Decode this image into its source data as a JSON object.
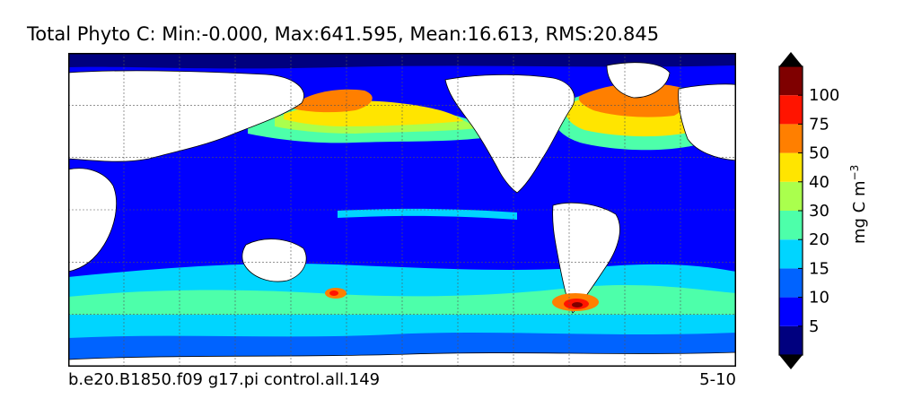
{
  "chart_data": {
    "type": "heatmap",
    "title": "Total Phyto C: Min:-0.000, Max:641.595, Mean:16.613, RMS:20.845",
    "subtitle_left": "b.e20.B1850.f09 g17.pi control.all.149",
    "subtitle_right": "5-10",
    "projection": "global lat-lon map (contour fill)",
    "grid": true,
    "colorbar": {
      "orientation": "vertical",
      "placement": "right",
      "extend": "both",
      "unit_label": "mg C m",
      "unit_superscript": "−3",
      "levels": [
        5,
        10,
        15,
        20,
        30,
        40,
        50,
        75,
        100
      ],
      "tick_labels": [
        "5",
        "10",
        "15",
        "20",
        "30",
        "40",
        "50",
        "75",
        "100"
      ],
      "colors": [
        "#00007f",
        "#0000ff",
        "#0063ff",
        "#00d5ff",
        "#4dffaa",
        "#aaff4d",
        "#ffe500",
        "#ff7f00",
        "#ff1400",
        "#7f0000"
      ],
      "under_color": "#00007f",
      "over_color": "#7f0000"
    }
  }
}
